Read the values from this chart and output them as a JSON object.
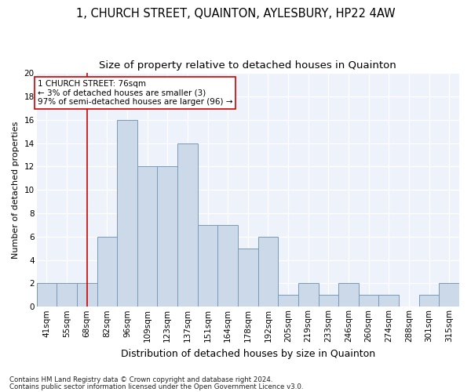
{
  "title": "1, CHURCH STREET, QUAINTON, AYLESBURY, HP22 4AW",
  "subtitle": "Size of property relative to detached houses in Quainton",
  "xlabel": "Distribution of detached houses by size in Quainton",
  "ylabel": "Number of detached properties",
  "categories": [
    "41sqm",
    "55sqm",
    "68sqm",
    "82sqm",
    "96sqm",
    "109sqm",
    "123sqm",
    "137sqm",
    "151sqm",
    "164sqm",
    "178sqm",
    "192sqm",
    "205sqm",
    "219sqm",
    "233sqm",
    "246sqm",
    "260sqm",
    "274sqm",
    "288sqm",
    "301sqm",
    "315sqm"
  ],
  "values": [
    2,
    2,
    2,
    6,
    16,
    12,
    12,
    14,
    7,
    7,
    5,
    6,
    1,
    2,
    1,
    2,
    1,
    1,
    0,
    1,
    2
  ],
  "bar_color": "#ccd9e8",
  "bar_edge_color": "#7799bb",
  "vline_x_index": 2,
  "vline_color": "#cc0000",
  "annotation_text": "1 CHURCH STREET: 76sqm\n← 3% of detached houses are smaller (3)\n97% of semi-detached houses are larger (96) →",
  "annotation_box_color": "#ffffff",
  "annotation_box_edge": "#cc0000",
  "footer_line1": "Contains HM Land Registry data © Crown copyright and database right 2024.",
  "footer_line2": "Contains public sector information licensed under the Open Government Licence v3.0.",
  "bg_color": "#eef2fa",
  "ylim": [
    0,
    20
  ],
  "yticks": [
    0,
    2,
    4,
    6,
    8,
    10,
    12,
    14,
    16,
    18,
    20
  ],
  "title_fontsize": 10.5,
  "subtitle_fontsize": 9.5,
  "ylabel_fontsize": 8,
  "xlabel_fontsize": 9,
  "tick_fontsize": 7.5,
  "ann_fontsize": 7.5
}
